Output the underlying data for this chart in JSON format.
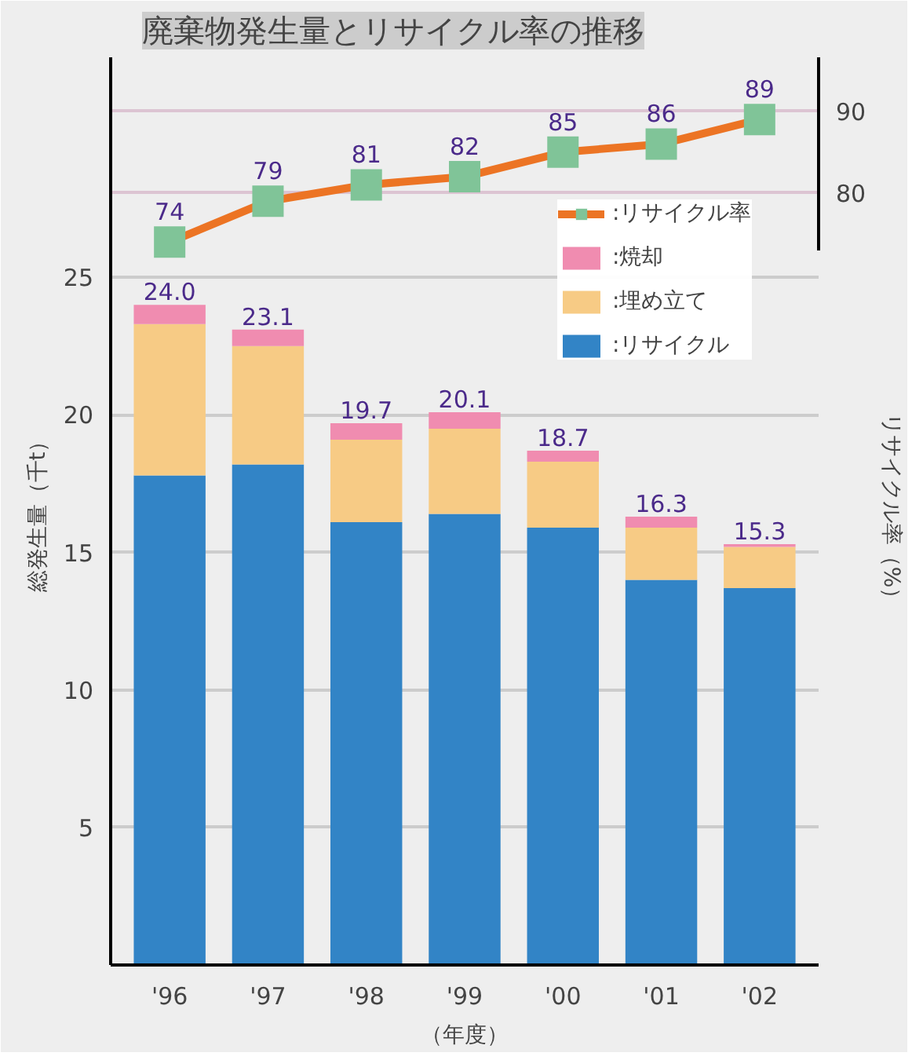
{
  "chart_data": {
    "type": "bar",
    "title": "廃棄物発生量とリサイクル率の推移",
    "ylabel": "総発生量（千t）",
    "y2label": "リサイクル率（%）",
    "xlabel": "（年度）",
    "categories": [
      "'96",
      "'97",
      "'98",
      "'99",
      "'00",
      "'01",
      "'02"
    ],
    "stacked": true,
    "series": [
      {
        "name": ":リサイクル",
        "color": "#3284c6",
        "values": [
          17.8,
          18.2,
          16.1,
          16.4,
          15.9,
          14.0,
          13.7
        ]
      },
      {
        "name": ":埋め立て",
        "color": "#f7cb85",
        "values": [
          5.5,
          4.3,
          3.0,
          3.1,
          2.4,
          1.9,
          1.5
        ]
      },
      {
        "name": ":焼却",
        "color": "#f08cb0",
        "values": [
          0.7,
          0.6,
          0.6,
          0.6,
          0.4,
          0.4,
          0.1
        ]
      },
      {
        "name": ":リサイクル率",
        "type": "line",
        "axis": "y2",
        "color": "#ec7424",
        "colors": [
          "#80c498",
          "#80c498",
          "#80c498",
          "#80c498",
          "#80c498",
          "#80c498",
          "#80c498"
        ],
        "values": [
          74,
          79,
          81,
          82,
          85,
          86,
          89
        ],
        "value_labels": [
          "74",
          "79",
          "81",
          "82",
          "85",
          "86",
          "89"
        ]
      }
    ],
    "totals": [
      "24.0",
      "23.1",
      "19.7",
      "20.1",
      "18.7",
      "16.3",
      "15.3"
    ],
    "ylim": [
      0,
      33
    ],
    "yticks": [
      5,
      10,
      15,
      20,
      25
    ],
    "y2lim": [
      -14.4,
      96.6
    ],
    "y2ticks": [
      80,
      90
    ],
    "grid": "y",
    "legend": "top right",
    "marker": "square",
    "line_style": "solid"
  }
}
